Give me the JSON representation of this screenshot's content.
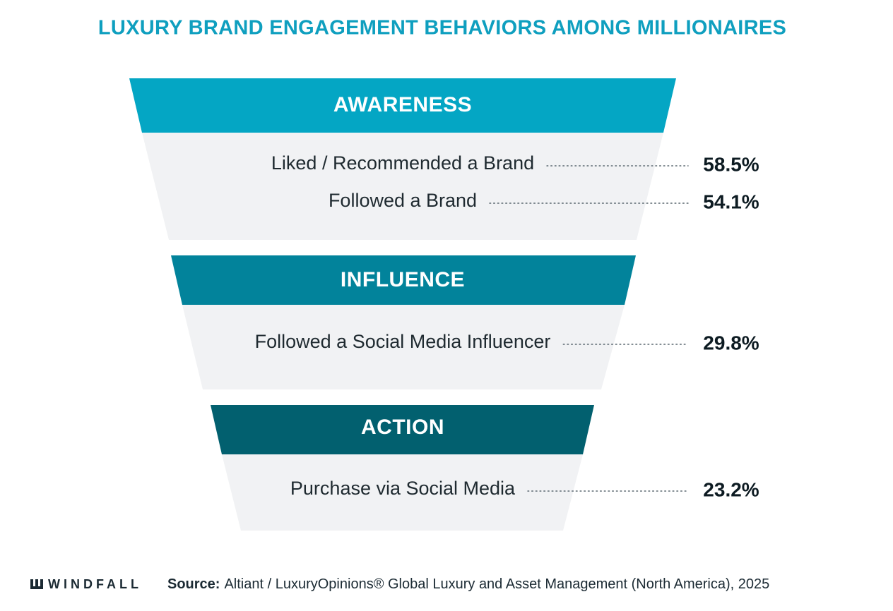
{
  "header": {
    "title": "LUXURY BRAND ENGAGEMENT BEHAVIORS AMONG MILLIONAIRES"
  },
  "stages": [
    {
      "name": "AWARENESS",
      "items": [
        {
          "label": "Liked / Recommended a Brand",
          "value": "58.5%"
        },
        {
          "label": "Followed a Brand",
          "value": "54.1%"
        }
      ]
    },
    {
      "name": "INFLUENCE",
      "items": [
        {
          "label": "Followed a Social Media Influencer",
          "value": "29.8%"
        }
      ]
    },
    {
      "name": "ACTION",
      "items": [
        {
          "label": "Purchase via Social Media",
          "value": "23.2%"
        }
      ]
    }
  ],
  "footer": {
    "logo": "WINDFALL",
    "source_label": "Source:",
    "source_text": "Altiant / LuxuryOpinions® Global Luxury and Asset Management (North America), 2025"
  }
}
